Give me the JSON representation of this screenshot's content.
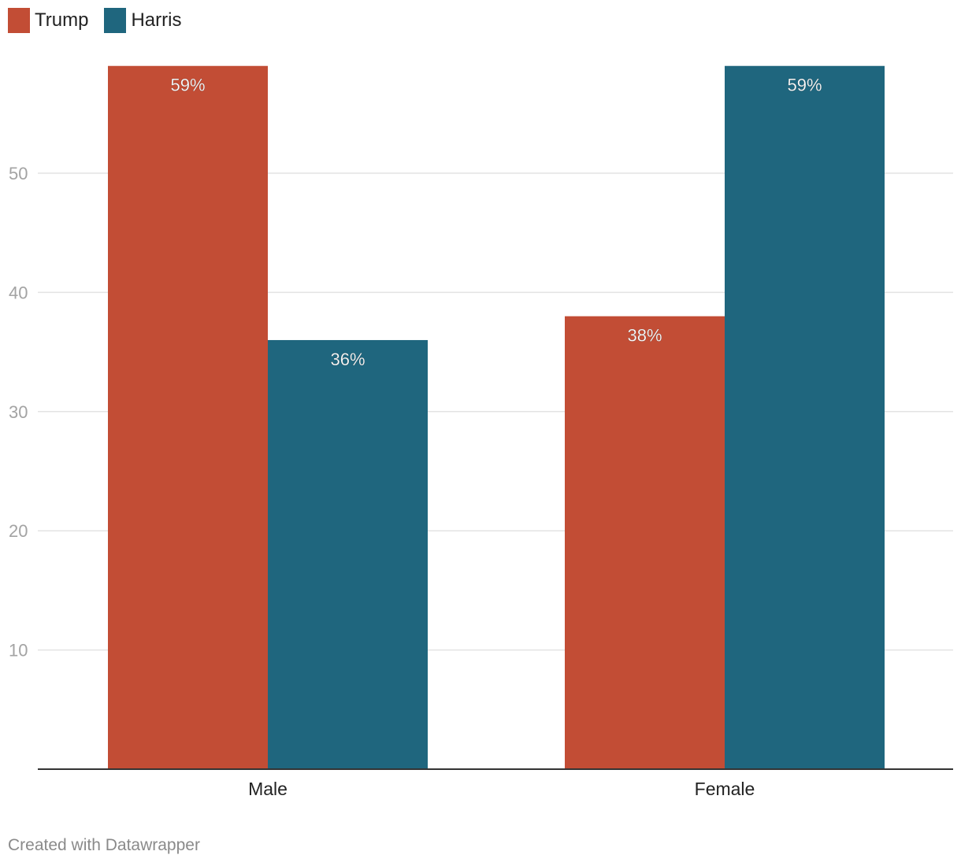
{
  "chart_data": {
    "type": "bar",
    "categories": [
      "Male",
      "Female"
    ],
    "series": [
      {
        "name": "Trump",
        "values": [
          59,
          38
        ],
        "labels": [
          "59%",
          "38%"
        ],
        "color": "#c24d35"
      },
      {
        "name": "Harris",
        "values": [
          36,
          59
        ],
        "labels": [
          "36%",
          "59%"
        ],
        "color": "#1f667e"
      }
    ],
    "ylim": [
      0,
      59
    ],
    "yticks": [
      10,
      20,
      30,
      40,
      50
    ],
    "grid": true,
    "legend_position": "top-left"
  },
  "credit": "Created with Datawrapper"
}
